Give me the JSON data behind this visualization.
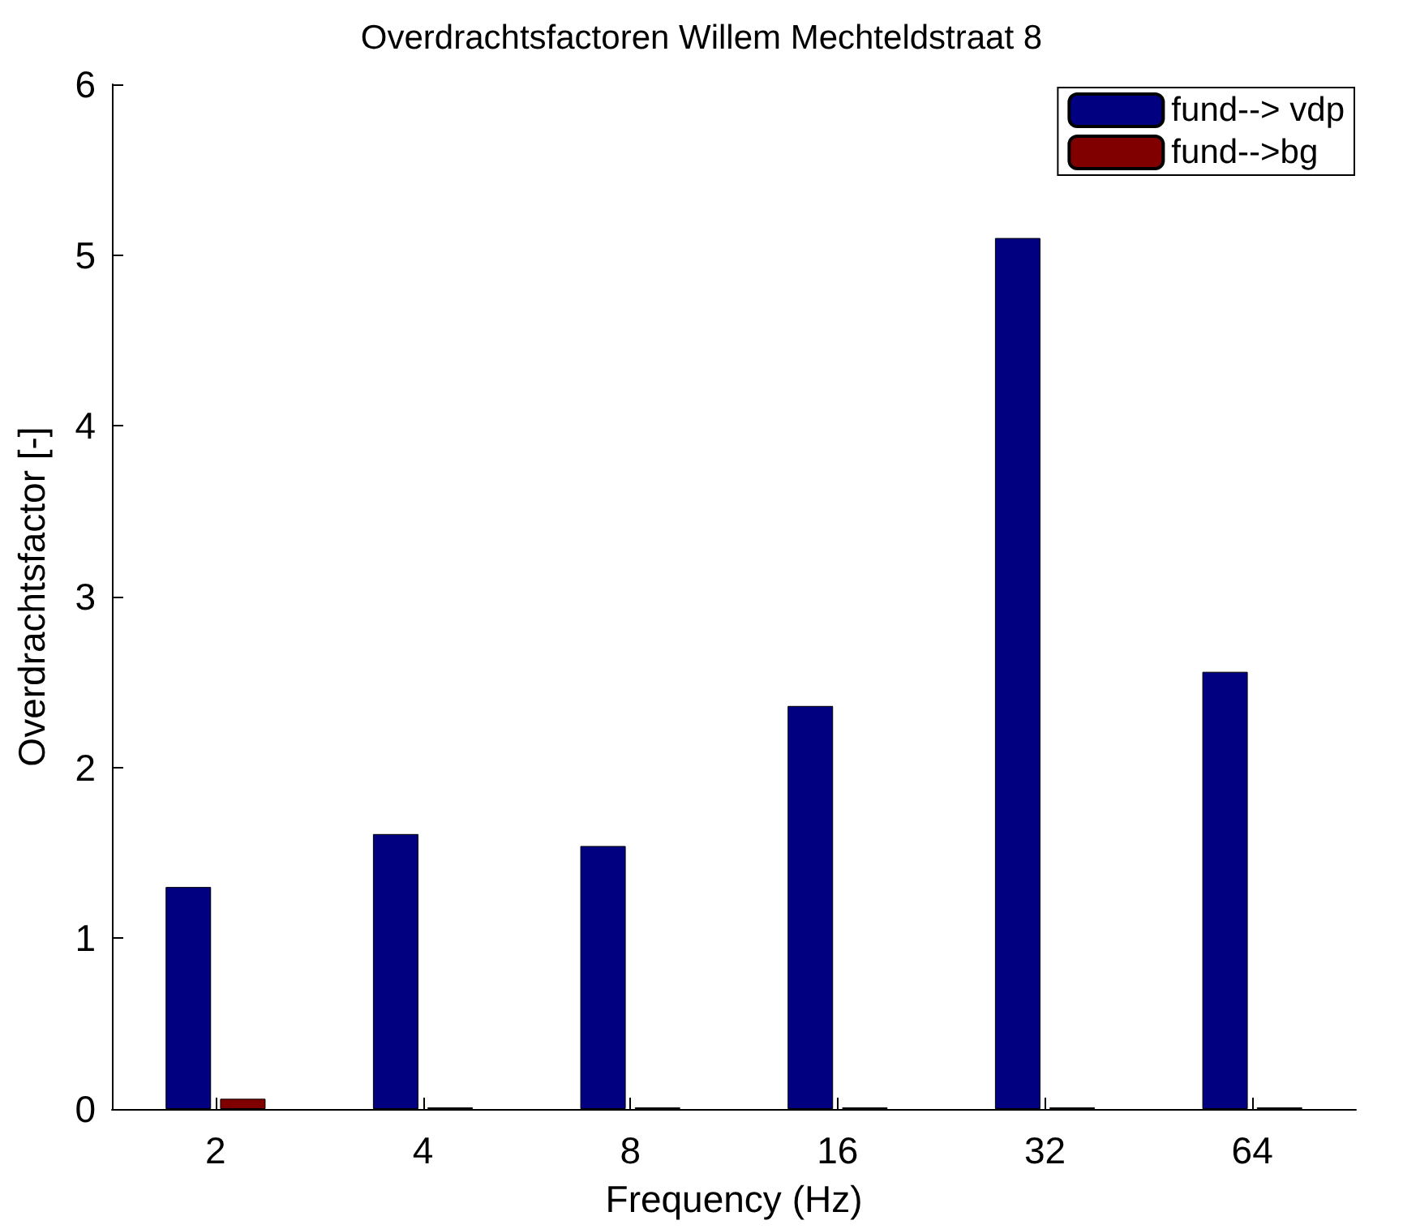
{
  "chart_data": {
    "type": "bar",
    "title": "Overdrachtsfactoren Willem Mechteldstraat 8",
    "xlabel": "Frequency (Hz)",
    "ylabel": "Overdrachtsfactor [-]",
    "categories": [
      "2",
      "4",
      "8",
      "16",
      "32",
      "64"
    ],
    "series": [
      {
        "name": "fund--> vdp",
        "color": "#000080",
        "values": [
          1.3,
          1.61,
          1.54,
          2.36,
          5.1,
          2.56
        ]
      },
      {
        "name": "fund-->bg",
        "color": "#800000",
        "values": [
          0.06,
          0.01,
          0.01,
          0.01,
          0.01,
          0.01
        ]
      }
    ],
    "ylim": [
      0,
      6
    ],
    "yticks": [
      0,
      1,
      2,
      3,
      4,
      5,
      6
    ],
    "grid": false,
    "legend": "top right"
  }
}
